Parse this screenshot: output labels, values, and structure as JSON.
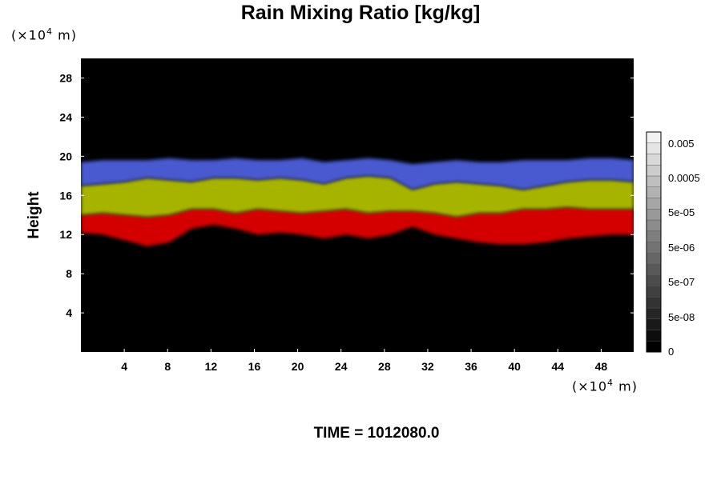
{
  "chart_data": {
    "type": "heatmap",
    "title": "Rain Mixing Ratio [kg/kg]",
    "ylabel": "Height",
    "xlabel": "",
    "y_unit": {
      "prefix": "(×10",
      "exp": "4",
      "suffix": " m)"
    },
    "x_unit": {
      "prefix": "(×10",
      "exp": "4",
      "suffix": " m)"
    },
    "xlim": [
      0,
      51
    ],
    "ylim": [
      0,
      30
    ],
    "x_ticks": [
      4,
      8,
      12,
      16,
      20,
      24,
      28,
      32,
      36,
      40,
      44,
      48
    ],
    "y_ticks": [
      4,
      8,
      12,
      16,
      20,
      24,
      28
    ],
    "x_tick_labels": [
      "4",
      "8",
      "12",
      "16",
      "20",
      "24",
      "28",
      "32",
      "36",
      "40",
      "44",
      "48"
    ],
    "y_tick_labels": [
      "4",
      "8",
      "12",
      "16",
      "20",
      "24",
      "28"
    ],
    "bands": [
      {
        "name": "red",
        "color": "#d40000",
        "bottom": [
          12.2,
          12.0,
          11.4,
          10.8,
          11.2,
          12.6,
          13.0,
          12.6,
          12.0,
          12.2,
          12.0,
          11.6,
          12.0,
          11.6,
          12.0,
          12.8,
          12.0,
          11.6,
          11.2,
          11.0,
          11.0,
          11.2,
          11.6,
          11.8,
          12.0,
          12.0
        ],
        "top": [
          14.0,
          14.2,
          14.0,
          13.8,
          14.0,
          14.6,
          14.6,
          14.2,
          14.6,
          14.4,
          14.2,
          14.4,
          14.6,
          14.2,
          14.4,
          14.4,
          14.2,
          13.8,
          14.2,
          14.2,
          14.6,
          14.6,
          14.8,
          14.6,
          14.6,
          14.6
        ]
      },
      {
        "name": "yellow-green",
        "color": "#a6b400",
        "bottom": [
          14.0,
          14.2,
          14.0,
          13.8,
          14.0,
          14.6,
          14.6,
          14.2,
          14.6,
          14.4,
          14.2,
          14.4,
          14.6,
          14.2,
          14.4,
          14.4,
          14.2,
          13.8,
          14.2,
          14.2,
          14.6,
          14.6,
          14.8,
          14.6,
          14.6,
          14.6
        ],
        "top": [
          17.0,
          17.2,
          17.4,
          17.8,
          17.6,
          17.4,
          17.8,
          17.8,
          17.6,
          17.8,
          17.6,
          17.2,
          17.8,
          18.0,
          17.8,
          16.6,
          17.2,
          17.4,
          17.2,
          17.0,
          16.6,
          17.0,
          17.4,
          17.6,
          17.6,
          17.4
        ]
      },
      {
        "name": "blue",
        "color": "#4a5ad0",
        "bottom": [
          17.0,
          17.2,
          17.4,
          17.8,
          17.6,
          17.4,
          17.8,
          17.8,
          17.6,
          17.8,
          17.6,
          17.2,
          17.8,
          18.0,
          17.8,
          16.6,
          17.2,
          17.4,
          17.2,
          17.0,
          16.6,
          17.0,
          17.4,
          17.6,
          17.6,
          17.4
        ],
        "top": [
          19.4,
          19.6,
          19.6,
          19.6,
          19.8,
          19.6,
          19.6,
          19.8,
          19.6,
          19.6,
          19.8,
          19.4,
          19.6,
          19.8,
          19.6,
          19.2,
          19.4,
          19.6,
          19.4,
          19.4,
          19.6,
          19.6,
          19.6,
          19.8,
          19.8,
          19.6
        ]
      }
    ],
    "colorbar": {
      "labels": [
        "0.005",
        "0.0005",
        "5e-05",
        "5e-06",
        "5e-07",
        "5e-08",
        "0"
      ],
      "levels": 20,
      "min_color": "#000000",
      "max_color": "#f2f2f2"
    },
    "background_color": "#000000"
  },
  "footer": {
    "time_label": "TIME = 1012080.0"
  }
}
